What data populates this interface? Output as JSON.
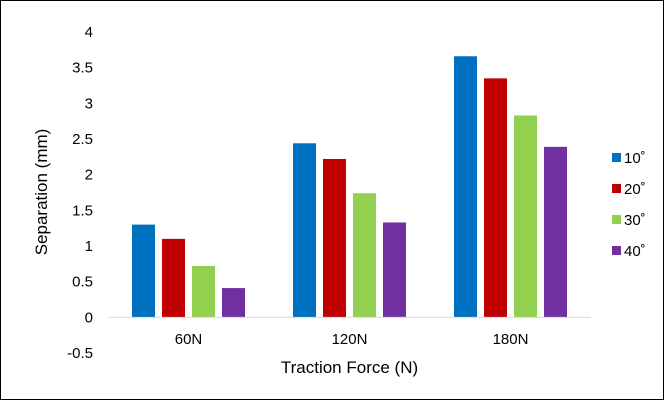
{
  "chart_data": {
    "type": "bar",
    "title": "",
    "xlabel": "Traction Force (N)",
    "ylabel": "Separation (mm)",
    "categories": [
      "60N",
      "120N",
      "180N"
    ],
    "ylim": [
      -0.5,
      4
    ],
    "yticks": [
      "-0.5",
      "0",
      "0.5",
      "1",
      "1.5",
      "2",
      "2.5",
      "3",
      "3.5",
      "4"
    ],
    "grid": false,
    "legend_position": "right",
    "series": [
      {
        "name": "10˚",
        "color": "#0070C0",
        "values": [
          1.3,
          2.44,
          3.66
        ]
      },
      {
        "name": "20˚",
        "color": "#C00000",
        "values": [
          1.1,
          2.22,
          3.35
        ]
      },
      {
        "name": "30˚",
        "color": "#92D050",
        "values": [
          0.72,
          1.74,
          2.83
        ]
      },
      {
        "name": "40˚",
        "color": "#7030A0",
        "values": [
          0.41,
          1.33,
          2.39
        ]
      }
    ]
  }
}
